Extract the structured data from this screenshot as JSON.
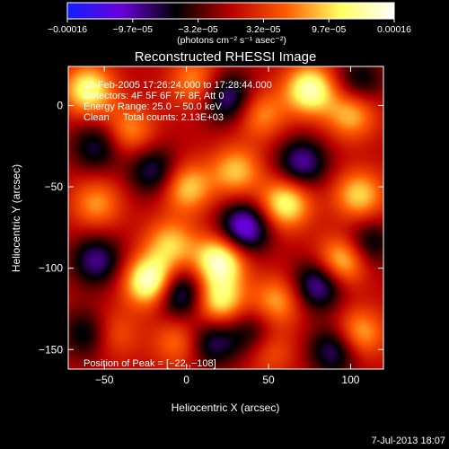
{
  "chart_data": {
    "type": "heatmap",
    "title": "Reconstructed RHESSI Image",
    "xlabel": "Heliocentric X (arcsec)",
    "ylabel": "Heliocentric Y (arcsec)",
    "xlim": [
      -72,
      120
    ],
    "ylim": [
      -162,
      24
    ],
    "x_ticks": [
      {
        "value": -50,
        "label": "−50"
      },
      {
        "value": 0,
        "label": "0"
      },
      {
        "value": 50,
        "label": "50"
      },
      {
        "value": 100,
        "label": "100"
      }
    ],
    "y_ticks": [
      {
        "value": 0,
        "label": "0"
      },
      {
        "value": -50,
        "label": "−50"
      },
      {
        "value": -100,
        "label": "−100"
      },
      {
        "value": -150,
        "label": "−150"
      }
    ],
    "colorbar": {
      "units": "(photons cm⁻² s⁻¹ asec⁻²)",
      "min": -0.00016,
      "max": 0.00016,
      "tick_labels": [
        "−0.00016",
        "−9.7e−05",
        "−3.2e−05",
        "3.2e−05",
        "9.7e−05",
        "0.00016"
      ],
      "colors": [
        "#1020ff",
        "#6a00d8",
        "#000000",
        "#b80000",
        "#ff5a00",
        "#ffff60",
        "#ffffff"
      ]
    },
    "annotations": [
      "16-Feb-2005 17:26:24.000 to 17:28:44.000",
      "Detectors: 4F 5F 6F 7F 8F, Att 0",
      "Energy Range: 25.0 − 50.0 keV",
      "Clean     Total counts: 2.13E+03"
    ],
    "peak_label": "Position of Peak = [−22.,−108]",
    "peak": [
      -22,
      -108
    ],
    "sources": [
      {
        "x": -60,
        "y": 10,
        "amp": 0.75
      },
      {
        "x": -22,
        "y": -108,
        "amp": 1.0
      },
      {
        "x": -10,
        "y": -85,
        "amp": 0.55
      },
      {
        "x": 20,
        "y": -95,
        "amp": 0.9
      },
      {
        "x": 20,
        "y": -120,
        "amp": 0.7
      },
      {
        "x": 0,
        "y": -50,
        "amp": 0.6
      },
      {
        "x": 30,
        "y": -40,
        "amp": 0.55
      },
      {
        "x": 60,
        "y": -60,
        "amp": 0.75
      },
      {
        "x": 75,
        "y": 10,
        "amp": 0.85
      },
      {
        "x": 100,
        "y": -5,
        "amp": 0.55
      },
      {
        "x": 105,
        "y": -55,
        "amp": 0.6
      },
      {
        "x": 95,
        "y": -95,
        "amp": 0.7
      },
      {
        "x": 105,
        "y": -140,
        "amp": 0.55
      },
      {
        "x": 55,
        "y": -120,
        "amp": 0.5
      },
      {
        "x": 5,
        "y": 15,
        "amp": 0.45
      },
      {
        "x": -35,
        "y": -15,
        "amp": 0.45
      },
      {
        "x": 45,
        "y": -5,
        "amp": 0.45
      },
      {
        "x": -55,
        "y": -60,
        "amp": 0.45
      },
      {
        "x": -5,
        "y": -145,
        "amp": 0.4
      },
      {
        "x": -45,
        "y": -140,
        "amp": 0.35
      },
      {
        "x": 50,
        "y": -150,
        "amp": 0.35
      },
      {
        "x": 35,
        "y": -75,
        "amp": -0.8
      },
      {
        "x": -5,
        "y": -115,
        "amp": -0.7
      },
      {
        "x": 25,
        "y": 5,
        "amp": -0.6
      },
      {
        "x": 70,
        "y": -35,
        "amp": -0.6
      },
      {
        "x": 80,
        "y": -110,
        "amp": -0.65
      },
      {
        "x": -55,
        "y": -95,
        "amp": -0.55
      },
      {
        "x": 15,
        "y": -145,
        "amp": -0.5
      },
      {
        "x": 90,
        "y": -150,
        "amp": -0.55
      },
      {
        "x": -20,
        "y": -40,
        "amp": -0.5
      },
      {
        "x": -55,
        "y": -25,
        "amp": -0.45
      },
      {
        "x": -60,
        "y": -140,
        "amp": -0.45
      },
      {
        "x": 105,
        "y": 15,
        "amp": -0.4
      },
      {
        "x": 110,
        "y": -85,
        "amp": -0.45
      },
      {
        "x": 40,
        "y": -140,
        "amp": -0.4
      }
    ]
  },
  "footer": {
    "timestamp": "7-Jul-2013 18:07"
  }
}
